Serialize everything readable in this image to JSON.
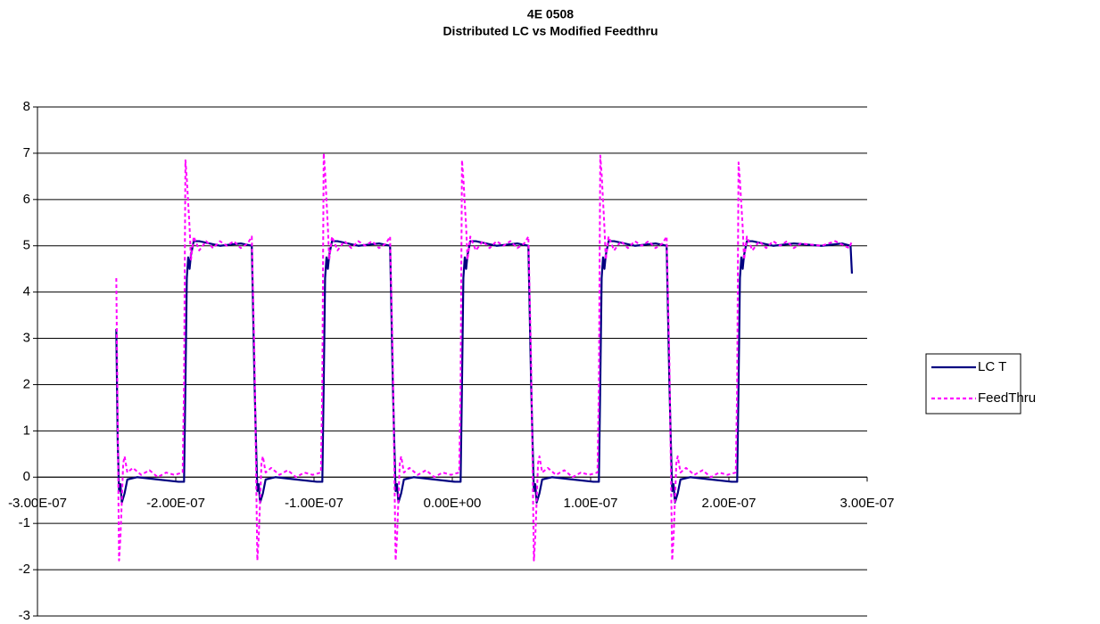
{
  "chart_data": {
    "type": "line",
    "title": "4E 0508",
    "subtitle": "Distributed LC vs Modified Feedthru",
    "xlim": [
      -3e-07,
      3e-07
    ],
    "xticks": [
      {
        "value": -3e-07,
        "label": "-3.00E-07"
      },
      {
        "value": -2e-07,
        "label": "-2.00E-07"
      },
      {
        "value": -1e-07,
        "label": "-1.00E-07"
      },
      {
        "value": 0,
        "label": "0.00E+00"
      },
      {
        "value": 1e-07,
        "label": "1.00E-07"
      },
      {
        "value": 2e-07,
        "label": "2.00E-07"
      },
      {
        "value": 3e-07,
        "label": "3.00E-07"
      }
    ],
    "ylim": [
      -3,
      8
    ],
    "yticks": [
      -3,
      -2,
      -1,
      0,
      1,
      2,
      3,
      4,
      5,
      6,
      7,
      8
    ],
    "grid": true,
    "legend": "right",
    "series": [
      {
        "name": "LC T",
        "color": "#000080",
        "dash": false,
        "x": [
          -2.43e-07,
          -2.42e-07,
          -2.41e-07,
          -2.4e-07,
          -2.39e-07,
          -2.37e-07,
          -2.35e-07,
          -2.28e-07,
          -2.13e-07,
          -1.98e-07,
          -1.94e-07,
          -1.93e-07,
          -1.92e-07,
          -1.91e-07,
          -1.9e-07,
          -1.89e-07,
          -1.87e-07,
          -1.83e-07,
          -1.68e-07,
          -1.53e-07,
          -1.45e-07,
          -1.43e-07,
          -1.42e-07,
          -1.41e-07,
          -1.4e-07,
          -1.39e-07,
          -1.37e-07,
          -1.35e-07,
          -1.28e-07,
          -1.13e-07,
          -9.8e-08,
          -9.4e-08,
          -9.3e-08,
          -9.2e-08,
          -9.1e-08,
          -9e-08,
          -8.9e-08,
          -8.7e-08,
          -8.3e-08,
          -6.8e-08,
          -5.3e-08,
          -4.5e-08,
          -4.3e-08,
          -4.2e-08,
          -4.1e-08,
          -4e-08,
          -3.9e-08,
          -3.7e-08,
          -3.5e-08,
          -2.8e-08,
          -1.3e-08,
          2e-09,
          6e-09,
          7e-09,
          8e-09,
          9e-09,
          1e-08,
          1.1e-08,
          1.3e-08,
          1.7e-08,
          3.2e-08,
          4.7e-08,
          5.5e-08,
          5.7e-08,
          5.8e-08,
          5.9e-08,
          6e-08,
          6.1e-08,
          6.3e-08,
          6.5e-08,
          7.2e-08,
          8.7e-08,
          1.02e-07,
          1.06e-07,
          1.07e-07,
          1.08e-07,
          1.09e-07,
          1.1e-07,
          1.11e-07,
          1.13e-07,
          1.17e-07,
          1.32e-07,
          1.47e-07,
          1.55e-07,
          1.57e-07,
          1.58e-07,
          1.59e-07,
          1.6e-07,
          1.61e-07,
          1.63e-07,
          1.65e-07,
          1.72e-07,
          1.87e-07,
          2.02e-07,
          2.06e-07,
          2.07e-07,
          2.08e-07,
          2.09e-07,
          2.1e-07,
          2.11e-07,
          2.13e-07,
          2.17e-07,
          2.32e-07,
          2.47e-07,
          2.67e-07,
          2.82e-07,
          2.88e-07,
          2.89e-07
        ],
        "values": [
          3.2,
          0.8,
          -0.3,
          -0.15,
          -0.55,
          -0.35,
          -0.05,
          0,
          -0.05,
          -0.1,
          -0.1,
          2,
          4.3,
          4.75,
          4.5,
          4.8,
          5.1,
          5.1,
          5,
          5.05,
          5,
          2,
          0.8,
          -0.3,
          -0.15,
          -0.55,
          -0.35,
          -0.05,
          0,
          -0.05,
          -0.1,
          -0.1,
          2,
          4.3,
          4.75,
          4.5,
          4.8,
          5.1,
          5.1,
          5,
          5.05,
          5,
          2,
          0.8,
          -0.3,
          -0.15,
          -0.55,
          -0.35,
          -0.05,
          0,
          -0.05,
          -0.1,
          -0.1,
          2,
          4.3,
          4.75,
          4.5,
          4.8,
          5.1,
          5.1,
          5,
          5.05,
          5,
          2,
          0.8,
          -0.3,
          -0.15,
          -0.55,
          -0.35,
          -0.05,
          0,
          -0.05,
          -0.1,
          -0.1,
          2,
          4.3,
          4.75,
          4.5,
          4.8,
          5.1,
          5.1,
          5,
          5.05,
          5,
          2,
          0.8,
          -0.3,
          -0.15,
          -0.55,
          -0.35,
          -0.05,
          0,
          -0.05,
          -0.1,
          -0.1,
          2,
          4.3,
          4.75,
          4.5,
          4.8,
          5.1,
          5.1,
          5,
          5.05,
          5,
          5.05,
          5,
          4.4
        ]
      },
      {
        "name": "FeedThru",
        "color": "#ff00ff",
        "dash": true,
        "x": [
          -2.43e-07,
          -2.41e-07,
          -2.4e-07,
          -2.38e-07,
          -2.37e-07,
          -2.35e-07,
          -2.31e-07,
          -2.25e-07,
          -2.19e-07,
          -2.13e-07,
          -2.07e-07,
          -2.01e-07,
          -1.95e-07,
          -1.94e-07,
          -1.93e-07,
          -1.92e-07,
          -1.9e-07,
          -1.89e-07,
          -1.87e-07,
          -1.83e-07,
          -1.78e-07,
          -1.73e-07,
          -1.68e-07,
          -1.63e-07,
          -1.58e-07,
          -1.53e-07,
          -1.48e-07,
          -1.45e-07,
          -1.43e-07,
          -1.41e-07,
          -1.4e-07,
          -1.38e-07,
          -1.37e-07,
          -1.35e-07,
          -1.31e-07,
          -1.25e-07,
          -1.19e-07,
          -1.13e-07,
          -1.07e-07,
          -1.01e-07,
          -9.5e-08,
          -9.4e-08,
          -9.3e-08,
          -9.2e-08,
          -9e-08,
          -8.9e-08,
          -8.7e-08,
          -8.3e-08,
          -7.8e-08,
          -7.3e-08,
          -6.8e-08,
          -6.3e-08,
          -5.8e-08,
          -5.3e-08,
          -4.8e-08,
          -4.5e-08,
          -4.3e-08,
          -4.1e-08,
          -4e-08,
          -3.8e-08,
          -3.7e-08,
          -3.5e-08,
          -3.1e-08,
          -2.5e-08,
          -1.9e-08,
          -1.3e-08,
          -7e-09,
          -1e-09,
          5e-09,
          6e-09,
          7e-09,
          8e-09,
          1e-08,
          1.1e-08,
          1.3e-08,
          1.7e-08,
          2.2e-08,
          2.7e-08,
          3.2e-08,
          3.7e-08,
          4.2e-08,
          4.7e-08,
          5.2e-08,
          5.5e-08,
          5.7e-08,
          5.9e-08,
          6e-08,
          6.2e-08,
          6.3e-08,
          6.5e-08,
          6.9e-08,
          7.5e-08,
          8.1e-08,
          8.7e-08,
          9.3e-08,
          9.9e-08,
          1.05e-07,
          1.06e-07,
          1.07e-07,
          1.08e-07,
          1.1e-07,
          1.11e-07,
          1.13e-07,
          1.17e-07,
          1.22e-07,
          1.27e-07,
          1.32e-07,
          1.37e-07,
          1.42e-07,
          1.47e-07,
          1.52e-07,
          1.55e-07,
          1.57e-07,
          1.59e-07,
          1.6e-07,
          1.62e-07,
          1.63e-07,
          1.65e-07,
          1.69e-07,
          1.75e-07,
          1.81e-07,
          1.87e-07,
          1.93e-07,
          1.99e-07,
          2.05e-07,
          2.06e-07,
          2.07e-07,
          2.08e-07,
          2.1e-07,
          2.11e-07,
          2.13e-07,
          2.17e-07,
          2.22e-07,
          2.27e-07,
          2.32e-07,
          2.37e-07,
          2.42e-07,
          2.47e-07,
          2.52e-07,
          2.67e-07,
          2.77e-07,
          2.87e-07,
          2.89e-07
        ],
        "values": [
          4.3,
          -1.8,
          -1.3,
          0.3,
          0.45,
          0.1,
          0.2,
          0.05,
          0.15,
          0,
          0.1,
          0.05,
          0.1,
          2,
          6.85,
          6.45,
          5.4,
          4.7,
          5.2,
          4.9,
          5.1,
          4.95,
          5.1,
          5,
          5.1,
          4.95,
          5.05,
          5.2,
          2.5,
          -1.8,
          -1.3,
          0.3,
          0.45,
          0.1,
          0.2,
          0.05,
          0.15,
          0,
          0.1,
          0.05,
          0.1,
          2,
          7,
          6.6,
          5.4,
          4.7,
          5.2,
          4.9,
          5.1,
          4.95,
          5.1,
          5,
          5.1,
          4.95,
          5.05,
          5.2,
          2.5,
          -1.8,
          -1.3,
          0.3,
          0.45,
          0.1,
          0.2,
          0.05,
          0.15,
          0,
          0.1,
          0.05,
          0.1,
          2,
          6.85,
          6.45,
          5.4,
          4.7,
          5.2,
          4.9,
          5.1,
          4.95,
          5.1,
          5,
          5.1,
          4.95,
          5.05,
          5.2,
          2.5,
          -1.8,
          -1.3,
          0.3,
          0.45,
          0.1,
          0.2,
          0.05,
          0.15,
          0,
          0.1,
          0.05,
          0.1,
          2,
          6.95,
          6.55,
          5.4,
          4.7,
          5.2,
          4.9,
          5.1,
          4.95,
          5.1,
          5,
          5.1,
          4.95,
          5.05,
          5.2,
          2.5,
          -1.8,
          -1.3,
          0.3,
          0.45,
          0.1,
          0.2,
          0.05,
          0.15,
          0,
          0.1,
          0.05,
          0.1,
          2,
          6.8,
          6.4,
          5.4,
          4.7,
          5.2,
          4.9,
          5.1,
          4.95,
          5.1,
          5,
          5.1,
          4.95,
          5.05,
          5,
          5.1,
          4.95,
          5.1
        ]
      }
    ]
  }
}
